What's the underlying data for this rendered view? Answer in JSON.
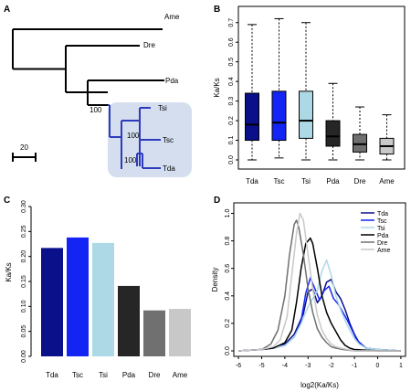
{
  "panels": {
    "A": {
      "label": "A",
      "taxa": [
        "Ame",
        "Dre",
        "Pda",
        "Tsi",
        "Tsc",
        "Tda"
      ],
      "bootstrap": [
        "100",
        "100",
        "100"
      ],
      "scale_label": "20",
      "colors": {
        "tree": "#000000",
        "clade": "#2e3bbd",
        "highlight": "#d4deee"
      }
    },
    "B": {
      "label": "B",
      "ylabel": "Ka/Ks",
      "yticks": [
        "0.0",
        "0.1",
        "0.2",
        "0.3",
        "0.4",
        "0.5",
        "0.6",
        "0.7"
      ]
    },
    "C": {
      "label": "C",
      "ylabel": "Ka/Ks",
      "yticks": [
        "0.00",
        "0.05",
        "0.10",
        "0.15",
        "0.20",
        "0.25",
        "0.30"
      ]
    },
    "D": {
      "label": "D",
      "xlabel": "log2(Ka/Ks)",
      "ylabel": "Density",
      "xticks": [
        "-6",
        "-5",
        "-4",
        "-3",
        "-2",
        "-1",
        "0",
        "1"
      ],
      "yticks": [
        "0.0",
        "0.2",
        "0.4",
        "0.6",
        "0.8",
        "1.0"
      ]
    }
  },
  "chart_data": [
    {
      "type": "box",
      "panel": "B",
      "ylabel": "Ka/Ks",
      "ylim": [
        0,
        0.75
      ],
      "categories": [
        "Tda",
        "Tsc",
        "Tsi",
        "Pda",
        "Dre",
        "Ame"
      ],
      "colors": [
        "#0a0f8a",
        "#1424f5",
        "#add8e6",
        "#262626",
        "#707070",
        "#c8c8c8"
      ],
      "boxes": [
        {
          "name": "Tda",
          "min": 0.0,
          "q1": 0.1,
          "median": 0.18,
          "q3": 0.34,
          "max": 0.69
        },
        {
          "name": "Tsc",
          "min": 0.01,
          "q1": 0.1,
          "median": 0.19,
          "q3": 0.35,
          "max": 0.72
        },
        {
          "name": "Tsi",
          "min": 0.0,
          "q1": 0.11,
          "median": 0.2,
          "q3": 0.35,
          "max": 0.7
        },
        {
          "name": "Pda",
          "min": 0.0,
          "q1": 0.07,
          "median": 0.12,
          "q3": 0.2,
          "max": 0.39
        },
        {
          "name": "Dre",
          "min": 0.0,
          "q1": 0.04,
          "median": 0.08,
          "q3": 0.13,
          "max": 0.27
        },
        {
          "name": "Ame",
          "min": 0.0,
          "q1": 0.03,
          "median": 0.07,
          "q3": 0.11,
          "max": 0.23
        }
      ]
    },
    {
      "type": "bar",
      "panel": "C",
      "ylabel": "Ka/Ks",
      "ylim": [
        0,
        0.3
      ],
      "categories": [
        "Tda",
        "Tsc",
        "Tsi",
        "Pda",
        "Dre",
        "Ame"
      ],
      "values": [
        0.217,
        0.238,
        0.227,
        0.141,
        0.092,
        0.095
      ],
      "colors": [
        "#0a0f8a",
        "#1424f5",
        "#add8e6",
        "#262626",
        "#707070",
        "#c8c8c8"
      ]
    },
    {
      "type": "line",
      "panel": "D",
      "xlabel": "log2(Ka/Ks)",
      "ylabel": "Density",
      "xlim": [
        -6.2,
        1.2
      ],
      "ylim": [
        0,
        1.05
      ],
      "legend_position": "top-right",
      "series": [
        {
          "name": "Tda",
          "color": "#0a0f8a",
          "x": [
            -6,
            -5,
            -4.5,
            -4,
            -3.6,
            -3.2,
            -3.0,
            -2.8,
            -2.6,
            -2.4,
            -2.2,
            -2.0,
            -1.8,
            -1.6,
            -1.4,
            -1.2,
            -1.0,
            -0.8,
            -0.5,
            0,
            1
          ],
          "y": [
            0,
            0.01,
            0.02,
            0.05,
            0.12,
            0.27,
            0.43,
            0.45,
            0.35,
            0.4,
            0.5,
            0.52,
            0.43,
            0.38,
            0.3,
            0.2,
            0.12,
            0.06,
            0.02,
            0.01,
            0
          ]
        },
        {
          "name": "Tsc",
          "color": "#1424f5",
          "x": [
            -6,
            -5,
            -4.5,
            -4,
            -3.6,
            -3.3,
            -3.1,
            -2.9,
            -2.7,
            -2.5,
            -2.3,
            -2.1,
            -1.9,
            -1.7,
            -1.5,
            -1.3,
            -1.1,
            -0.9,
            -0.5,
            0,
            1
          ],
          "y": [
            0,
            0.01,
            0.02,
            0.04,
            0.1,
            0.22,
            0.42,
            0.53,
            0.45,
            0.37,
            0.44,
            0.47,
            0.38,
            0.34,
            0.28,
            0.22,
            0.15,
            0.08,
            0.02,
            0.01,
            0
          ]
        },
        {
          "name": "Tsi",
          "color": "#add8e6",
          "x": [
            -6,
            -5,
            -4.5,
            -4,
            -3.6,
            -3.3,
            -3.0,
            -2.8,
            -2.6,
            -2.4,
            -2.2,
            -2.0,
            -1.8,
            -1.6,
            -1.4,
            -1.2,
            -1.0,
            -0.8,
            -0.5,
            0,
            1
          ],
          "y": [
            0,
            0.01,
            0.02,
            0.04,
            0.1,
            0.2,
            0.32,
            0.38,
            0.44,
            0.58,
            0.66,
            0.55,
            0.4,
            0.3,
            0.22,
            0.15,
            0.09,
            0.05,
            0.02,
            0.01,
            0
          ]
        },
        {
          "name": "Pda",
          "color": "#000000",
          "x": [
            -6,
            -5,
            -4.5,
            -4,
            -3.7,
            -3.5,
            -3.3,
            -3.1,
            -2.9,
            -2.8,
            -2.6,
            -2.4,
            -2.2,
            -2.0,
            -1.8,
            -1.6,
            -1.4,
            -1.2,
            -1.0,
            0,
            1
          ],
          "y": [
            0,
            0.01,
            0.02,
            0.06,
            0.15,
            0.35,
            0.6,
            0.78,
            0.82,
            0.78,
            0.6,
            0.4,
            0.28,
            0.2,
            0.14,
            0.08,
            0.04,
            0.02,
            0.01,
            0.0,
            0
          ]
        },
        {
          "name": "Dre",
          "color": "#707070",
          "x": [
            -6,
            -5,
            -4.6,
            -4.3,
            -4.0,
            -3.8,
            -3.6,
            -3.5,
            -3.4,
            -3.2,
            -3.0,
            -2.8,
            -2.6,
            -2.4,
            -2.2,
            -2.0,
            -1.8,
            -1.5,
            -1.0,
            0,
            1
          ],
          "y": [
            0,
            0.01,
            0.05,
            0.15,
            0.4,
            0.7,
            0.92,
            0.95,
            0.9,
            0.7,
            0.45,
            0.28,
            0.16,
            0.1,
            0.06,
            0.03,
            0.02,
            0.01,
            0.0,
            0,
            0
          ]
        },
        {
          "name": "Ame",
          "color": "#c8c8c8",
          "x": [
            -6,
            -5,
            -4.5,
            -4.2,
            -3.9,
            -3.7,
            -3.5,
            -3.35,
            -3.2,
            -3.0,
            -2.8,
            -2.6,
            -2.4,
            -2.2,
            -2.0,
            -1.8,
            -1.6,
            -1.3,
            -1.0,
            0,
            1
          ],
          "y": [
            0,
            0.01,
            0.03,
            0.08,
            0.25,
            0.55,
            0.85,
            1.0,
            0.95,
            0.7,
            0.45,
            0.26,
            0.15,
            0.09,
            0.05,
            0.03,
            0.02,
            0.01,
            0.0,
            0,
            0
          ]
        }
      ]
    }
  ]
}
